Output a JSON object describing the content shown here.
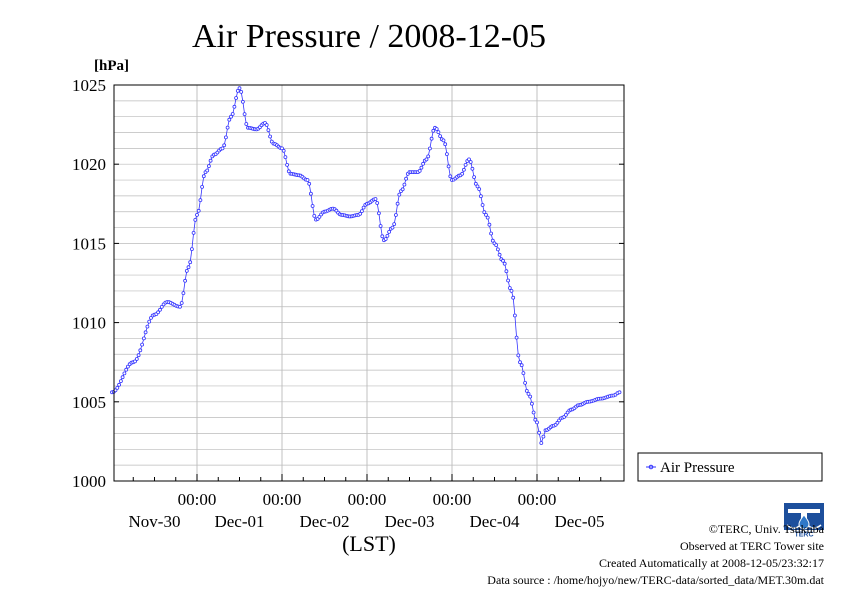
{
  "chart_data": {
    "type": "line",
    "title": "Air Pressure / 2008-12-05",
    "ylabel": "[hPa]",
    "xlabel": "(LST)",
    "ylim": [
      1000,
      1025
    ],
    "yticks": [
      1000,
      1005,
      1010,
      1015,
      1020,
      1025
    ],
    "xlim": [
      0,
      6
    ],
    "xtick_labels": [
      "00:00",
      "00:00",
      "00:00",
      "00:00",
      "00:00"
    ],
    "day_labels": [
      "Nov-30",
      "Dec-01",
      "Dec-02",
      "Dec-03",
      "Dec-04",
      "Dec-05"
    ],
    "grid": true,
    "legend_position": "right",
    "series": [
      {
        "name": "Air Pressure",
        "color": "#3333ff",
        "x": [
          0.0,
          0.25,
          0.5,
          0.65,
          0.8,
          0.9,
          1.0,
          1.1,
          1.2,
          1.3,
          1.4,
          1.5,
          1.6,
          1.7,
          1.8,
          1.9,
          2.0,
          2.1,
          2.2,
          2.3,
          2.4,
          2.5,
          2.6,
          2.7,
          2.8,
          2.9,
          3.0,
          3.1,
          3.2,
          3.3,
          3.4,
          3.5,
          3.6,
          3.7,
          3.8,
          3.9,
          4.0,
          4.1,
          4.2,
          4.3,
          4.4,
          4.5,
          4.6,
          4.7,
          4.8,
          4.9,
          5.0,
          5.05,
          5.1,
          5.2,
          5.3,
          5.4,
          5.5,
          5.6,
          5.75,
          5.9,
          5.97
        ],
        "y": [
          1005.6,
          1007.5,
          1010.5,
          1011.3,
          1011.0,
          1013.5,
          1016.8,
          1019.5,
          1020.6,
          1021.0,
          1023.0,
          1024.8,
          1022.3,
          1022.2,
          1022.6,
          1021.3,
          1021.0,
          1019.4,
          1019.3,
          1019.0,
          1016.5,
          1017.0,
          1017.2,
          1016.8,
          1016.7,
          1016.8,
          1017.5,
          1017.8,
          1015.2,
          1016.0,
          1018.3,
          1019.5,
          1019.5,
          1020.3,
          1022.3,
          1021.5,
          1019.0,
          1019.3,
          1020.3,
          1018.6,
          1016.8,
          1015.0,
          1013.9,
          1012.0,
          1007.5,
          1005.5,
          1003.7,
          1002.4,
          1003.2,
          1003.5,
          1004.0,
          1004.5,
          1004.8,
          1005.0,
          1005.2,
          1005.4,
          1005.6
        ]
      }
    ]
  },
  "credits": {
    "copyright": "©TERC, Univ. Tsukuba",
    "site": "Observed at TERC Tower site",
    "created": "Created Automatically at 2008-12-05/23:32:17",
    "source": "Data source : /home/hojyo/new/TERC-data/sorted_data/MET.30m.dat"
  },
  "logo_text": "TERC",
  "colors": {
    "line": "#3333ff",
    "grid": "#bbbbbb",
    "frame": "#000000"
  }
}
